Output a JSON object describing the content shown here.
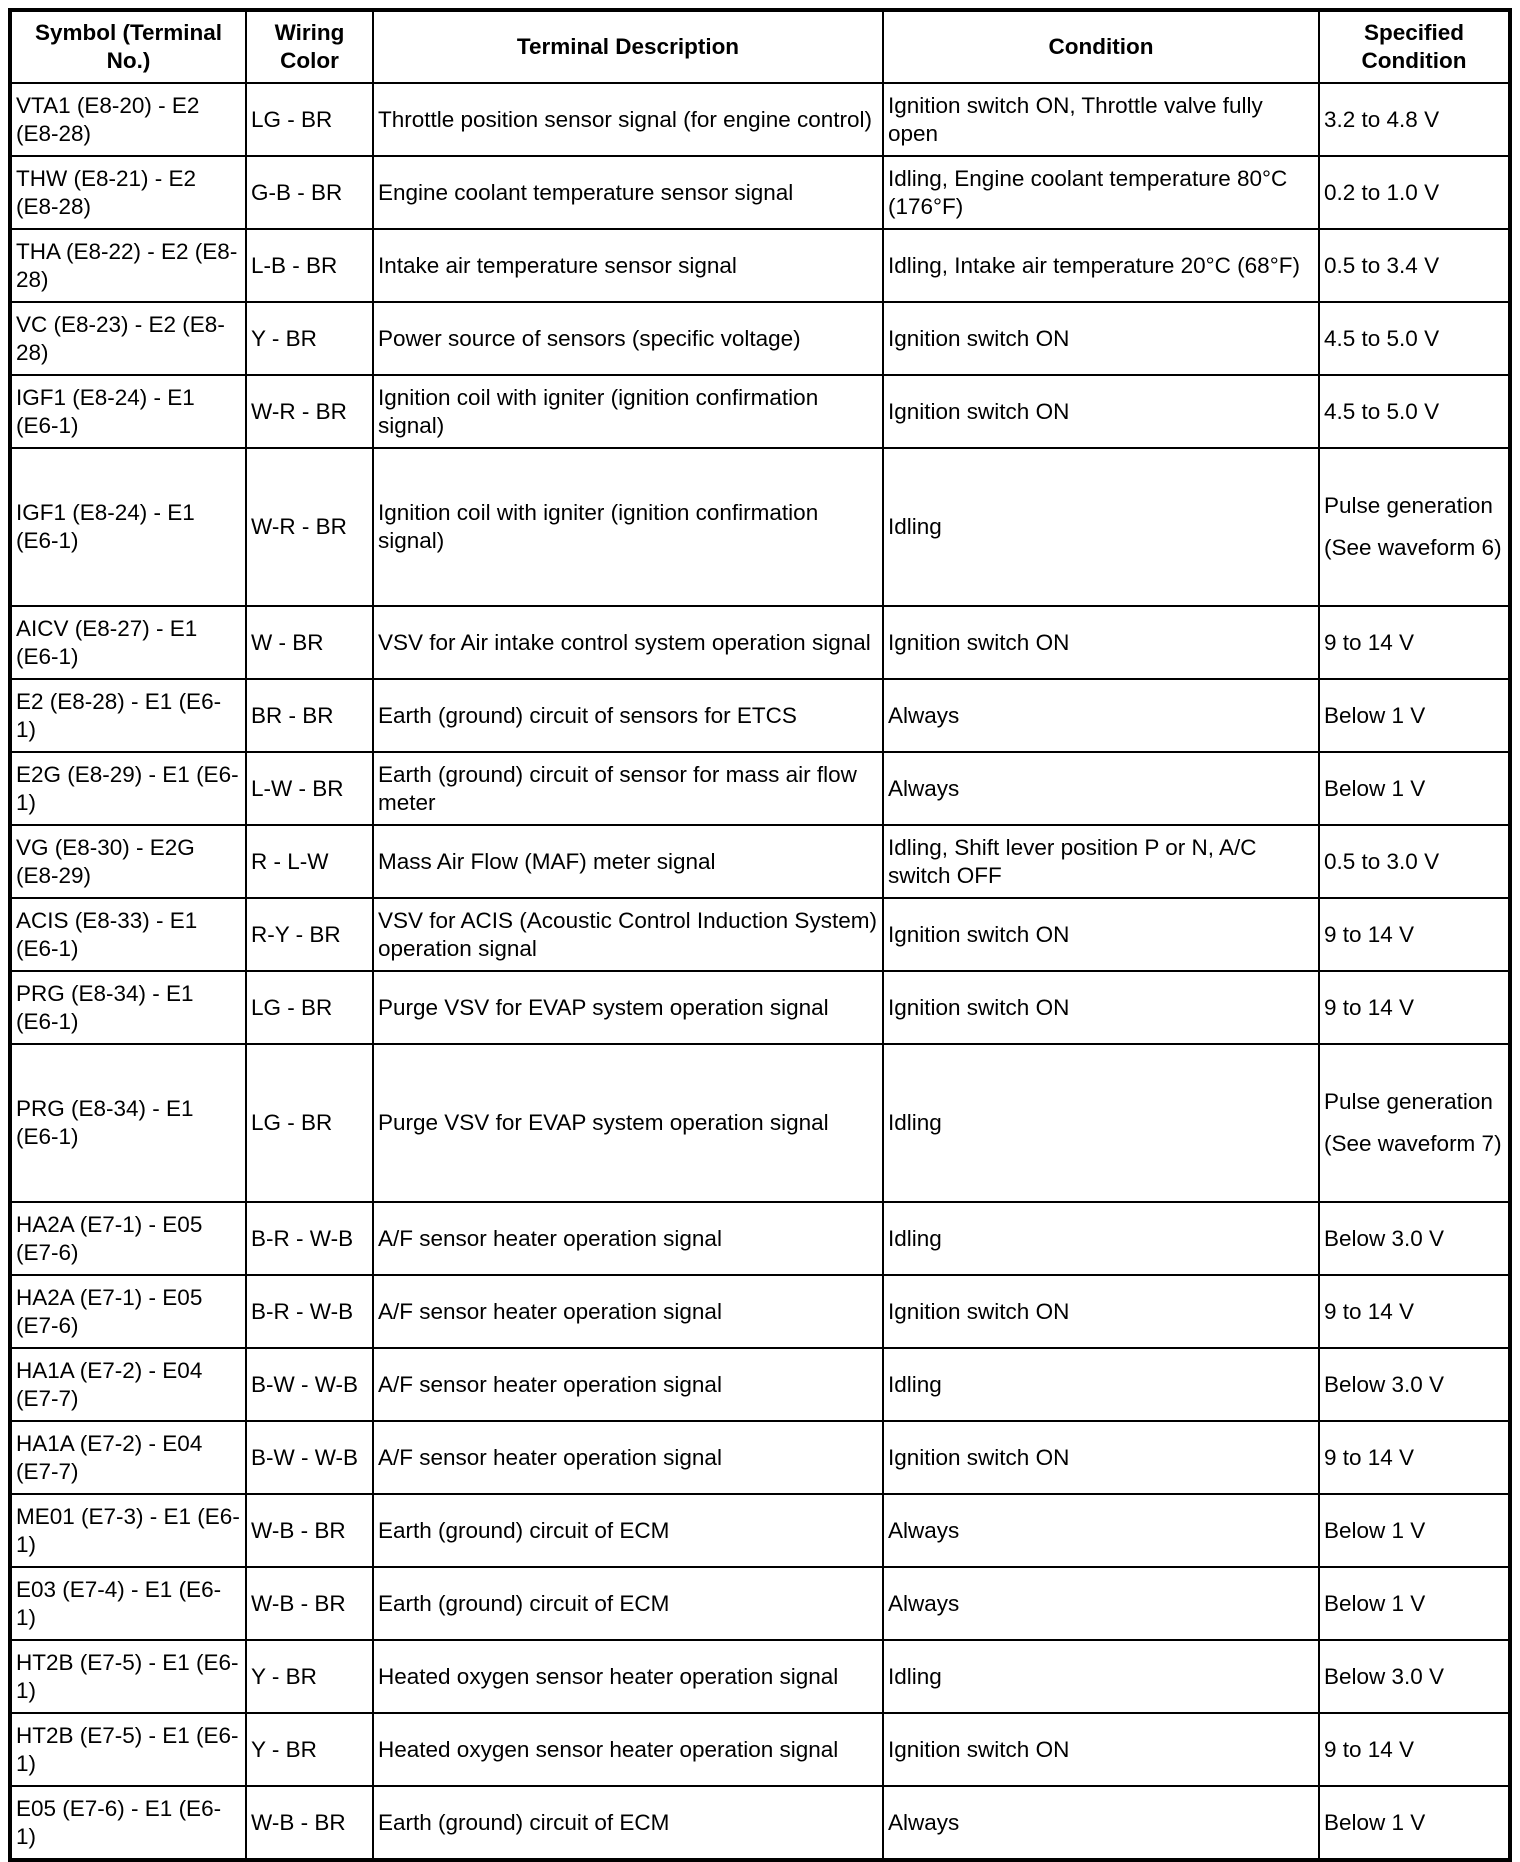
{
  "table": {
    "headers": [
      "Symbol (Terminal No.)",
      "Wiring Color",
      "Terminal Description",
      "Condition",
      "Specified Condition"
    ],
    "rows": [
      {
        "symbol": "VTA1 (E8-20) - E2 (E8-28)",
        "wiring": "LG - BR",
        "description": "Throttle position sensor signal (for engine control)",
        "condition": "Ignition switch ON, Throttle valve fully open",
        "specified": "3.2 to 4.8 V"
      },
      {
        "symbol": "THW (E8-21) - E2 (E8-28)",
        "wiring": "G-B - BR",
        "description": "Engine coolant temperature sensor signal",
        "condition": "Idling, Engine coolant temperature 80°C (176°F)",
        "specified": "0.2 to 1.0 V"
      },
      {
        "symbol": "THA (E8-22) - E2 (E8-28)",
        "wiring": "L-B - BR",
        "description": "Intake air temperature sensor signal",
        "condition": "Idling, Intake air temperature 20°C (68°F)",
        "specified": "0.5 to 3.4 V"
      },
      {
        "symbol": "VC (E8-23) - E2 (E8-28)",
        "wiring": "Y - BR",
        "description": "Power source of sensors (specific voltage)",
        "condition": "Ignition switch ON",
        "specified": "4.5 to 5.0 V"
      },
      {
        "symbol": "IGF1 (E8-24) - E1 (E6-1)",
        "wiring": "W-R - BR",
        "description": "Ignition coil with igniter (ignition confirmation signal)",
        "condition": "Ignition switch ON",
        "specified": "4.5 to 5.0 V"
      },
      {
        "symbol": "IGF1 (E8-24) - E1 (E6-1)",
        "wiring": "W-R - BR",
        "description": "Ignition coil with igniter (ignition confirmation signal)",
        "condition": "Idling",
        "specified": "Pulse generation",
        "specified_note": "(See waveform 6)"
      },
      {
        "symbol": "AICV (E8-27) - E1 (E6-1)",
        "wiring": "W - BR",
        "description": "VSV for Air intake control system operation signal",
        "condition": "Ignition switch ON",
        "specified": "9 to 14 V"
      },
      {
        "symbol": "E2 (E8-28) - E1 (E6-1)",
        "wiring": "BR - BR",
        "description": "Earth (ground) circuit of sensors for ETCS",
        "condition": "Always",
        "specified": "Below 1 V"
      },
      {
        "symbol": "E2G (E8-29) - E1 (E6-1)",
        "wiring": "L-W - BR",
        "description": "Earth (ground) circuit of sensor for mass air flow meter",
        "condition": "Always",
        "specified": "Below 1 V"
      },
      {
        "symbol": "VG (E8-30) - E2G (E8-29)",
        "wiring": "R - L-W",
        "description": "Mass Air Flow (MAF) meter signal",
        "condition": "Idling, Shift lever position P or N, A/C switch OFF",
        "specified": "0.5 to 3.0 V"
      },
      {
        "symbol": "ACIS (E8-33) - E1 (E6-1)",
        "wiring": "R-Y - BR",
        "description": "VSV for ACIS (Acoustic Control Induction System) operation signal",
        "condition": "Ignition switch ON",
        "specified": "9 to 14 V"
      },
      {
        "symbol": "PRG (E8-34) - E1 (E6-1)",
        "wiring": "LG - BR",
        "description": "Purge VSV for EVAP system operation signal",
        "condition": "Ignition switch ON",
        "specified": "9 to 14 V"
      },
      {
        "symbol": "PRG (E8-34) - E1 (E6-1)",
        "wiring": "LG - BR",
        "description": "Purge VSV for EVAP system operation signal",
        "condition": "Idling",
        "specified": "Pulse generation",
        "specified_note": "(See waveform 7)"
      },
      {
        "symbol": "HA2A (E7-1) - E05 (E7-6)",
        "wiring": "B-R - W-B",
        "description": "A/F sensor heater operation signal",
        "condition": "Idling",
        "specified": "Below 3.0 V"
      },
      {
        "symbol": "HA2A (E7-1) - E05 (E7-6)",
        "wiring": "B-R - W-B",
        "description": "A/F sensor heater operation signal",
        "condition": "Ignition switch ON",
        "specified": "9 to 14 V"
      },
      {
        "symbol": "HA1A (E7-2) - E04 (E7-7)",
        "wiring": "B-W - W-B",
        "description": "A/F sensor heater operation signal",
        "condition": "Idling",
        "specified": "Below 3.0 V"
      },
      {
        "symbol": "HA1A (E7-2) - E04 (E7-7)",
        "wiring": "B-W - W-B",
        "description": "A/F sensor heater operation signal",
        "condition": "Ignition switch ON",
        "specified": "9 to 14 V"
      },
      {
        "symbol": "ME01 (E7-3) - E1 (E6-1)",
        "wiring": "W-B - BR",
        "description": "Earth (ground) circuit of ECM",
        "condition": "Always",
        "specified": "Below 1 V"
      },
      {
        "symbol": "E03 (E7-4) - E1 (E6-1)",
        "wiring": "W-B - BR",
        "description": "Earth (ground) circuit of ECM",
        "condition": "Always",
        "specified": "Below 1 V"
      },
      {
        "symbol": "HT2B (E7-5) - E1 (E6-1)",
        "wiring": "Y - BR",
        "description": "Heated oxygen sensor heater operation signal",
        "condition": "Idling",
        "specified": "Below 3.0 V"
      },
      {
        "symbol": "HT2B (E7-5) - E1 (E6-1)",
        "wiring": "Y - BR",
        "description": "Heated oxygen sensor heater operation signal",
        "condition": "Ignition switch ON",
        "specified": "9 to 14 V"
      },
      {
        "symbol": "E05 (E7-6) - E1 (E6-1)",
        "wiring": "W-B - BR",
        "description": "Earth (ground) circuit of ECM",
        "condition": "Always",
        "specified": "Below 1 V"
      }
    ]
  }
}
